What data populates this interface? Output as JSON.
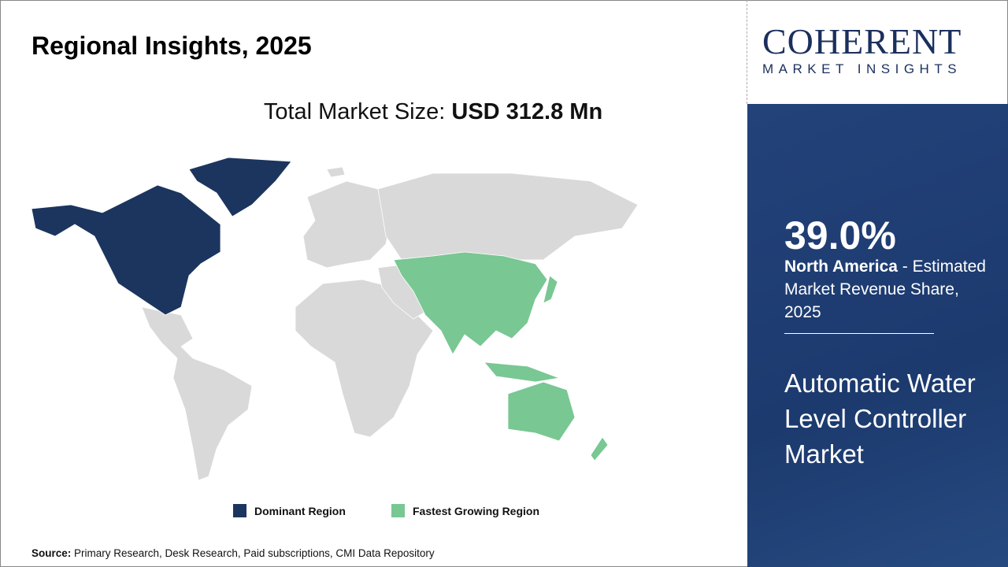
{
  "title": "Regional Insights, 2025",
  "total_label": "Total Market Size:",
  "total_value": "USD 312.8 Mn",
  "logo": {
    "line1": "COHERENT",
    "line2": "MARKET INSIGHTS"
  },
  "highlight": {
    "percent": "39.0%",
    "region": "North America",
    "text": " - Estimated Market Revenue Share, 2025"
  },
  "market_name": "Automatic Water Level Controller Market",
  "legend": [
    {
      "label": "Dominant Region",
      "color": "#1b355f"
    },
    {
      "label": "Fastest Growing Region",
      "color": "#79c793"
    }
  ],
  "map_colors": {
    "other": "#d9d9d9"
  },
  "source": {
    "label": "Source:",
    "text": " Primary Research, Desk Research, Paid subscriptions, CMI Data Repository"
  }
}
